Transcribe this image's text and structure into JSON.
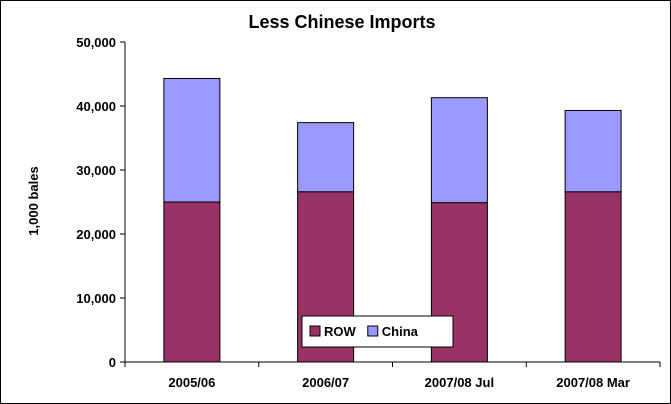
{
  "chart_data": {
    "type": "bar",
    "stacked": true,
    "title": "Less Chinese Imports",
    "xlabel": "",
    "ylabel": "1,000 bales",
    "ylim": [
      0,
      50000
    ],
    "yticks": [
      0,
      10000,
      20000,
      30000,
      40000,
      50000
    ],
    "ytick_labels": [
      "0",
      "10,000",
      "20,000",
      "30,000",
      "40,000",
      "50,000"
    ],
    "grid": false,
    "legend_position": "bottom-center",
    "categories": [
      "2005/06",
      "2006/07",
      "2007/08 Jul",
      "2007/08 Mar"
    ],
    "series": [
      {
        "name": "ROW",
        "color": "#993366",
        "values": [
          25000,
          26600,
          24900,
          26600
        ]
      },
      {
        "name": "China",
        "color": "#9999ff",
        "values": [
          19300,
          10800,
          16400,
          12700
        ]
      }
    ]
  }
}
